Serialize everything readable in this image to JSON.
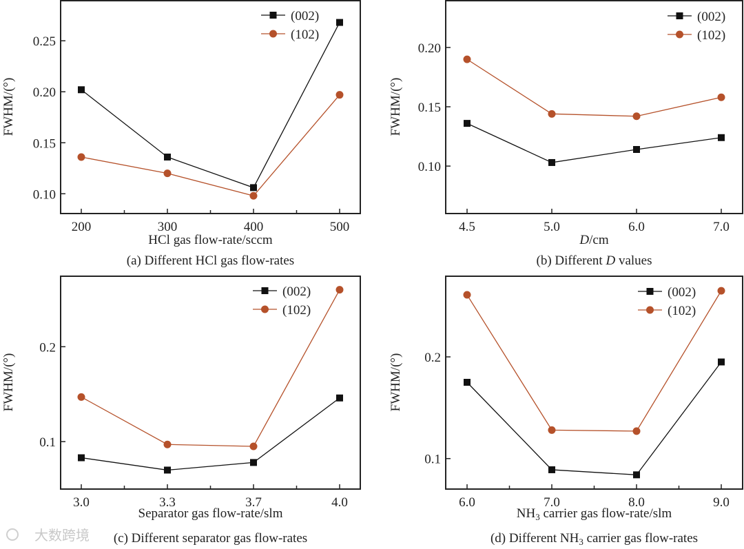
{
  "colors": {
    "s002": "#111111",
    "s102": "#b5512a",
    "axis": "#222222"
  },
  "watermark": "大数跨境",
  "chart_data": [
    {
      "type": "line",
      "caption": "(a) Different HCl gas flow-rates",
      "xlabel": [
        {
          "t": "HCl gas flow-rate/sccm"
        }
      ],
      "ylabel": "FWHM/(°)",
      "categories": [
        "200",
        "300",
        "400",
        "500"
      ],
      "x_minor_ticks": true,
      "ylim": [
        0.0806,
        0.29
      ],
      "yticks": [
        0.1,
        0.15,
        0.2,
        0.25
      ],
      "ytick_labels": [
        "0.10",
        "0.15",
        "0.20",
        "0.25"
      ],
      "legend": "top-right",
      "series": [
        {
          "name": "(002)",
          "marker": "square",
          "values": [
            0.202,
            0.136,
            0.106,
            0.268
          ]
        },
        {
          "name": "(102)",
          "marker": "circle",
          "values": [
            0.136,
            0.12,
            0.098,
            0.197
          ]
        }
      ]
    },
    {
      "type": "line",
      "caption": [
        {
          "t": "(b) Different "
        },
        {
          "t": "D",
          "i": true
        },
        {
          "t": " values"
        }
      ],
      "xlabel": [
        {
          "t": "D",
          "i": true
        },
        {
          "t": "/cm"
        }
      ],
      "ylabel": "FWHM/(°)",
      "categories": [
        "4.5",
        "5.0",
        "6.0",
        "7.0"
      ],
      "x_minor_ticks": false,
      "ylim": [
        0.06,
        0.24
      ],
      "yticks": [
        0.1,
        0.15,
        0.2
      ],
      "ytick_labels": [
        "0.10",
        "0.15",
        "0.20"
      ],
      "legend": "top-right",
      "series": [
        {
          "name": "(002)",
          "marker": "square",
          "values": [
            0.136,
            0.103,
            0.114,
            0.124
          ]
        },
        {
          "name": "(102)",
          "marker": "circle",
          "values": [
            0.19,
            0.144,
            0.142,
            0.158
          ]
        }
      ]
    },
    {
      "type": "line",
      "caption": [
        {
          "t": "(c) Different separator gas flow-rates"
        }
      ],
      "xlabel": [
        {
          "t": "Separator gas flow-rate/slm"
        }
      ],
      "ylabel": "FWHM/(°)",
      "categories": [
        "3.0",
        "3.3",
        "3.7",
        "4.0"
      ],
      "x_minor_ticks": true,
      "ylim": [
        0.05,
        0.275
      ],
      "yticks": [
        0.1,
        0.2
      ],
      "ytick_labels": [
        "0.1",
        "0.2"
      ],
      "legend": "top-right",
      "series": [
        {
          "name": "(002)",
          "marker": "square",
          "values": [
            0.083,
            0.07,
            0.078,
            0.146
          ]
        },
        {
          "name": "(102)",
          "marker": "circle",
          "values": [
            0.147,
            0.097,
            0.095,
            0.26
          ]
        }
      ]
    },
    {
      "type": "line",
      "caption": [
        {
          "t": "(d) Different NH"
        },
        {
          "t": "3",
          "sub": true
        },
        {
          "t": " carrier gas flow-rates"
        }
      ],
      "xlabel": [
        {
          "t": "NH"
        },
        {
          "t": "3",
          "sub": true
        },
        {
          "t": " carrier gas flow-rate/slm"
        }
      ],
      "ylabel": "FWHM/(°)",
      "categories": [
        "6.0",
        "7.0",
        "8.0",
        "9.0"
      ],
      "x_minor_ticks": true,
      "ylim": [
        0.07,
        0.28
      ],
      "yticks": [
        0.1,
        0.2
      ],
      "ytick_labels": [
        "0.1",
        "0.2"
      ],
      "legend": "top-right",
      "series": [
        {
          "name": "(002)",
          "marker": "square",
          "values": [
            0.175,
            0.089,
            0.084,
            0.195
          ]
        },
        {
          "name": "(102)",
          "marker": "circle",
          "values": [
            0.261,
            0.128,
            0.127,
            0.265
          ]
        }
      ]
    }
  ]
}
